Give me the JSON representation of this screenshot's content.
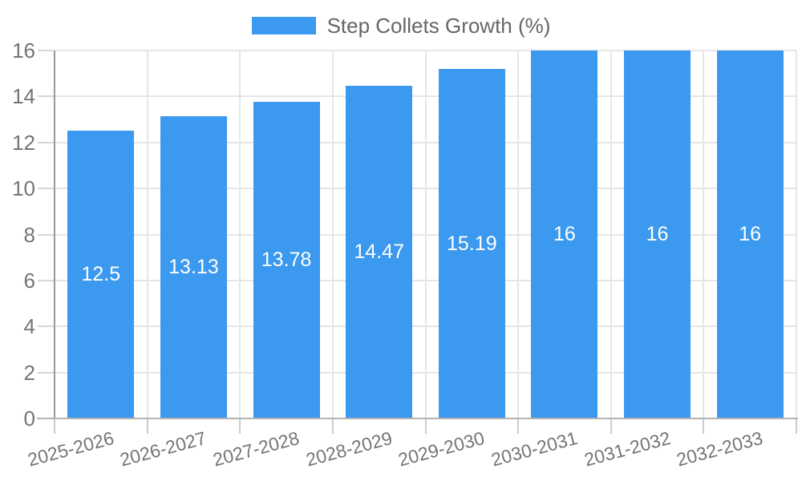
{
  "legend": {
    "position": "top"
  },
  "colors": {
    "bar": "#3b99ef",
    "grid": "#e6e6e6",
    "y_axis_line": "#999999",
    "x_axis_line": "#b3b3b3",
    "tick_mark": "#d0d0d0",
    "tick_text": "#757575",
    "legend_text": "#666666",
    "value_text": "#ffffff",
    "background": "#ffffff"
  },
  "chart_data": {
    "type": "bar",
    "title": "",
    "categories": [
      "2025-2026",
      "2026-2027",
      "2027-2028",
      "2028-2029",
      "2029-2030",
      "2030-2031",
      "2031-2032",
      "2032-2033"
    ],
    "series": [
      {
        "name": "Step Collets Growth (%)",
        "values": [
          12.5,
          13.13,
          13.78,
          14.47,
          15.19,
          16,
          16,
          16
        ]
      }
    ],
    "value_labels": [
      "12.5",
      "13.13",
      "13.78",
      "14.47",
      "15.19",
      "16",
      "16",
      "16"
    ],
    "value_labels_position": "inside-center",
    "xlabel": "",
    "ylabel": "",
    "ylim": [
      0,
      16
    ],
    "yticks": [
      0,
      2,
      4,
      6,
      8,
      10,
      12,
      14,
      16
    ],
    "grid": true,
    "legend_position": "top",
    "x_tick_rotation_deg": -15
  }
}
